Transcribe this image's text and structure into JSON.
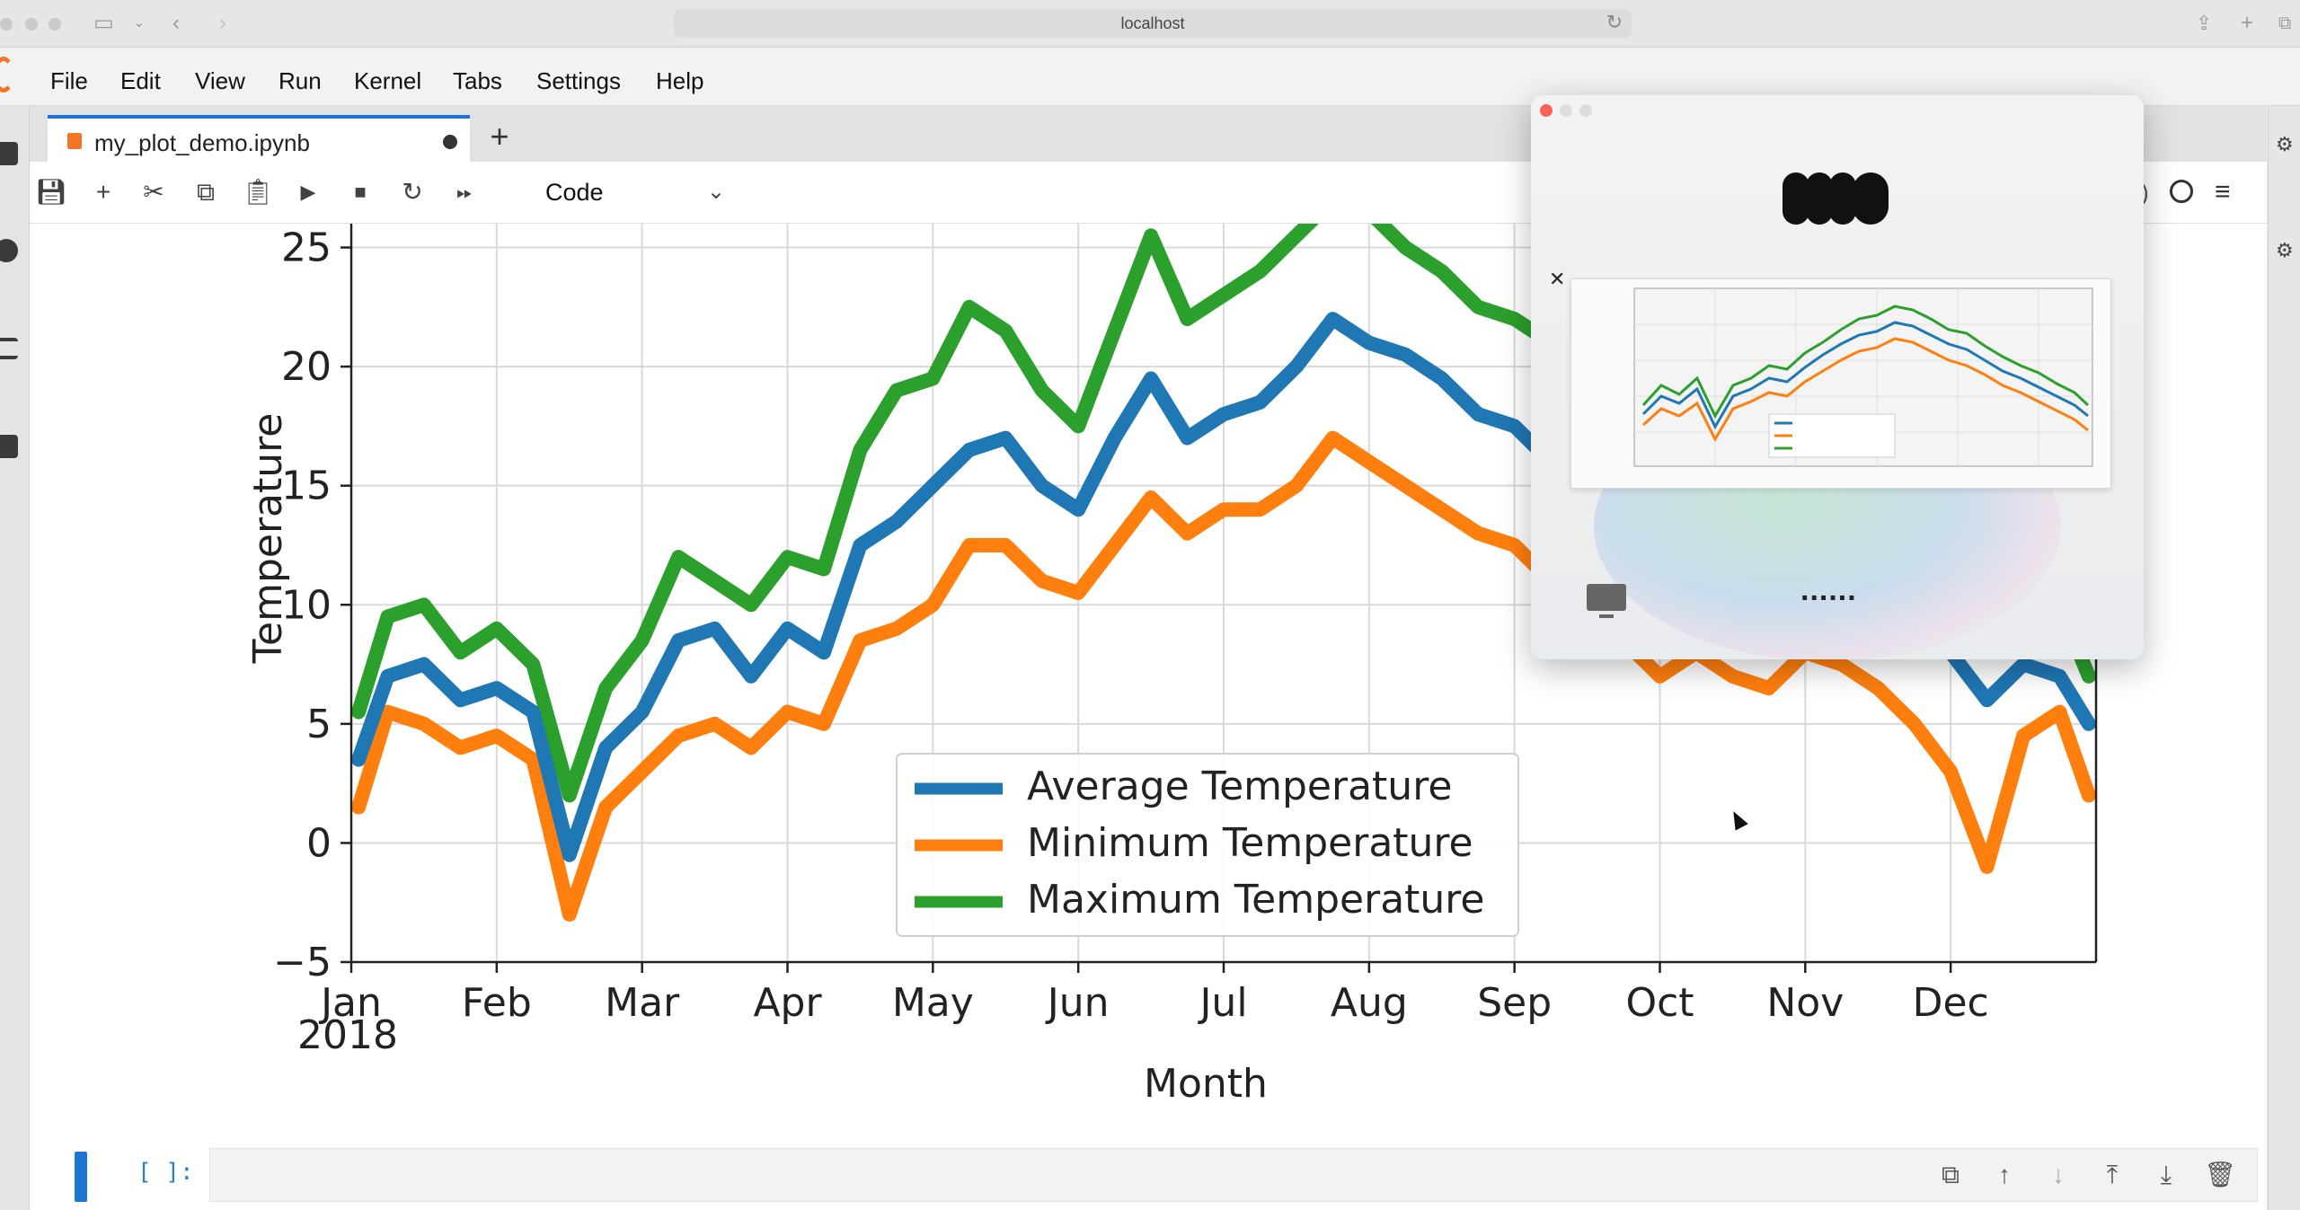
{
  "browser": {
    "address": "localhost"
  },
  "menu": [
    "File",
    "Edit",
    "View",
    "Run",
    "Kernel",
    "Tabs",
    "Settings",
    "Help"
  ],
  "tab": {
    "label": "my_plot_demo.ipynb",
    "add_label": "+"
  },
  "toolbar": {
    "icons": [
      "save-icon",
      "plus-icon",
      "cut-icon",
      "copy-icon",
      "paste-icon",
      "run-icon",
      "stop-icon",
      "restart-icon",
      "fast-forward-icon"
    ],
    "cell_type": "Code",
    "kernel_partial": ")"
  },
  "empty_cell": {
    "prompt": "[ ]:",
    "tools": [
      "duplicate-icon",
      "move-up-icon",
      "move-down-icon",
      "insert-above-icon",
      "insert-below-icon",
      "delete-icon"
    ]
  },
  "popup": {
    "dots": "......",
    "close": "✕"
  },
  "chart_data": {
    "type": "line",
    "xlabel": "Month",
    "ylabel": "Temperature",
    "xlim_months": [
      0,
      12
    ],
    "ylim": [
      -5,
      26
    ],
    "yticks": [
      -5,
      0,
      5,
      10,
      15,
      20,
      25
    ],
    "month_labels": [
      "Jan",
      "Feb",
      "Mar",
      "Apr",
      "May",
      "Jun",
      "Jul",
      "Aug",
      "Sep",
      "Oct",
      "Nov",
      "Dec"
    ],
    "year_label": "2018",
    "grid": true,
    "legend": "lower-center",
    "x": [
      0.05,
      0.25,
      0.5,
      0.75,
      1.0,
      1.25,
      1.5,
      1.75,
      2.0,
      2.25,
      2.5,
      2.75,
      3.0,
      3.25,
      3.5,
      3.75,
      4.0,
      4.25,
      4.5,
      4.75,
      5.0,
      5.25,
      5.5,
      5.75,
      6.0,
      6.25,
      6.5,
      6.75,
      7.0,
      7.25,
      7.5,
      7.75,
      8.0,
      8.25,
      8.5,
      8.75,
      9.0,
      9.25,
      9.5,
      9.75,
      10.0,
      10.25,
      10.5,
      10.75,
      11.0,
      11.25,
      11.5,
      11.75,
      11.95
    ],
    "series": [
      {
        "name": "Average Temperature",
        "color": "#1f77b4",
        "values": [
          3.5,
          7.0,
          7.5,
          6.0,
          6.5,
          5.5,
          -0.5,
          4.0,
          5.5,
          8.5,
          9.0,
          7.0,
          9.0,
          8.0,
          12.5,
          13.5,
          15.0,
          16.5,
          17.0,
          15.0,
          14.0,
          17.0,
          19.5,
          17.0,
          18.0,
          18.5,
          20.0,
          22.0,
          21.0,
          20.5,
          19.5,
          18.0,
          17.5,
          16.0,
          14.0,
          13.5,
          12.5,
          14.0,
          13.0,
          12.0,
          13.5,
          12.5,
          11.5,
          10.5,
          8.0,
          6.0,
          7.5,
          7.0,
          5.0
        ]
      },
      {
        "name": "Minimum Temperature",
        "color": "#ff7f0e",
        "values": [
          1.5,
          5.5,
          5.0,
          4.0,
          4.5,
          3.5,
          -3.0,
          1.5,
          3.0,
          4.5,
          5.0,
          4.0,
          5.5,
          5.0,
          8.5,
          9.0,
          10.0,
          12.5,
          12.5,
          11.0,
          10.5,
          12.5,
          14.5,
          13.0,
          14.0,
          14.0,
          15.0,
          17.0,
          16.0,
          15.0,
          14.0,
          13.0,
          12.5,
          11.0,
          9.0,
          8.5,
          7.0,
          8.0,
          7.0,
          6.5,
          8.0,
          7.5,
          6.5,
          5.0,
          3.0,
          -1.0,
          4.5,
          5.5,
          2.0
        ]
      },
      {
        "name": "Maximum Temperature",
        "color": "#2ca02c",
        "values": [
          5.5,
          9.5,
          10.0,
          8.0,
          9.0,
          7.5,
          2.0,
          6.5,
          8.5,
          12.0,
          11.0,
          10.0,
          12.0,
          11.5,
          16.5,
          19.0,
          19.5,
          22.5,
          21.5,
          19.0,
          17.5,
          21.5,
          25.5,
          22.0,
          23.0,
          24.0,
          25.5,
          27.0,
          26.5,
          25.0,
          24.0,
          22.5,
          22.0,
          21.0,
          19.0,
          18.5,
          17.0,
          18.0,
          17.5,
          16.5,
          18.0,
          17.5,
          16.5,
          15.0,
          12.5,
          9.0,
          10.5,
          10.0,
          7.0
        ]
      }
    ]
  }
}
